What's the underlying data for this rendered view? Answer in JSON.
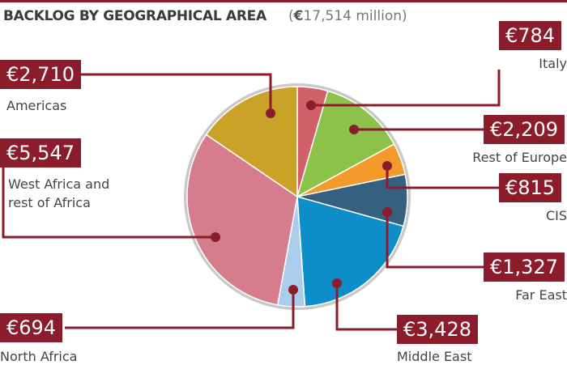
{
  "header": {
    "title": "BACKLOG BY GEOGRAPHICAL AREA",
    "subtitle_open": "(",
    "subtitle_euro": "€",
    "subtitle_amount": "17,514 million",
    "subtitle_close": ")"
  },
  "colors": {
    "accent": "#8b1c2c",
    "pie_border": "#c8c8c8"
  },
  "chart_data": {
    "type": "pie",
    "total": "€17,514 million",
    "unit": "€ million",
    "start_angle_deg": 0,
    "direction": "clockwise",
    "slices": [
      {
        "label": "Italy",
        "value": 784,
        "value_label": "€784",
        "color": "#d1606b"
      },
      {
        "label": "Rest of Europe",
        "value": 2209,
        "value_label": "€2,209",
        "color": "#8cc24a"
      },
      {
        "label": "CIS",
        "value": 815,
        "value_label": "€815",
        "color": "#f39a2a"
      },
      {
        "label": "Far East",
        "value": 1327,
        "value_label": "€1,327",
        "color": "#36607f"
      },
      {
        "label": "Middle East",
        "value": 3428,
        "value_label": "€3,428",
        "color": "#0d8ec9"
      },
      {
        "label": "North Africa",
        "value": 694,
        "value_label": "€694",
        "color": "#a9cdea"
      },
      {
        "label": "West Africa and rest of Africa",
        "value": 5547,
        "value_label": "€5,547",
        "color": "#d57d8c"
      },
      {
        "label": "Americas",
        "value": 2710,
        "value_label": "€2,710",
        "color": "#c9a227"
      }
    ]
  },
  "labels": {
    "italy": {
      "value": "€784",
      "name": "Italy"
    },
    "rest_of_europe": {
      "value": "€2,209",
      "name": "Rest of Europe"
    },
    "cis": {
      "value": "€815",
      "name": "CIS"
    },
    "far_east": {
      "value": "€1,327",
      "name": "Far East"
    },
    "middle_east": {
      "value": "€3,428",
      "name": "Middle East"
    },
    "north_africa": {
      "value": "€694",
      "name": "North Africa"
    },
    "west_africa": {
      "value": "€5,547",
      "name_line1": "West Africa and",
      "name_line2": "rest of Africa"
    },
    "americas": {
      "value": "€2,710",
      "name": "Americas"
    }
  }
}
